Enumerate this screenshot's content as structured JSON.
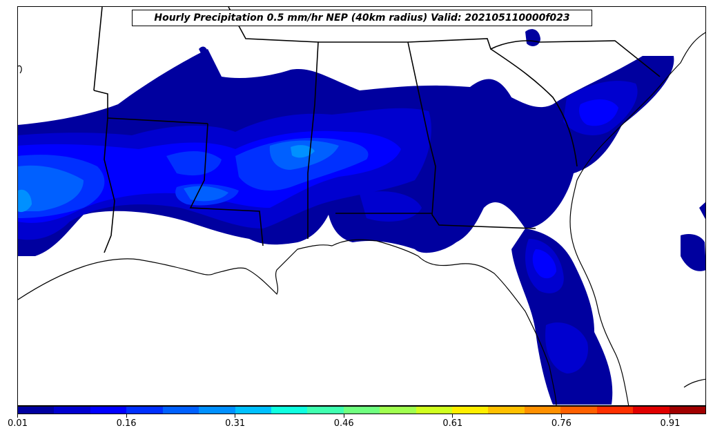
{
  "title": "Hourly Precipitation 0.5 mm/hr NEP (40km radius) Valid: 202105110000f023",
  "colorbar": {
    "colors": [
      "#00009f",
      "#0000cf",
      "#0000ff",
      "#0030ff",
      "#0060ff",
      "#0090ff",
      "#00c0ff",
      "#10ffe0",
      "#40ffb0",
      "#70ff80",
      "#a0ff50",
      "#d0ff20",
      "#ffee00",
      "#ffc000",
      "#ff9000",
      "#ff6000",
      "#ff3000",
      "#e00000",
      "#a00000"
    ],
    "tick_labels": [
      "0.01",
      "0.16",
      "0.31",
      "0.46",
      "0.61",
      "0.76",
      "0.91"
    ],
    "range": [
      0.01,
      1.0
    ]
  },
  "legend_colors": {
    "level_1": "#00009f",
    "level_2": "#0000cf",
    "level_3": "#0000ff",
    "level_4": "#0030ff",
    "level_5": "#0060ff",
    "level_6": "#0090ff"
  }
}
